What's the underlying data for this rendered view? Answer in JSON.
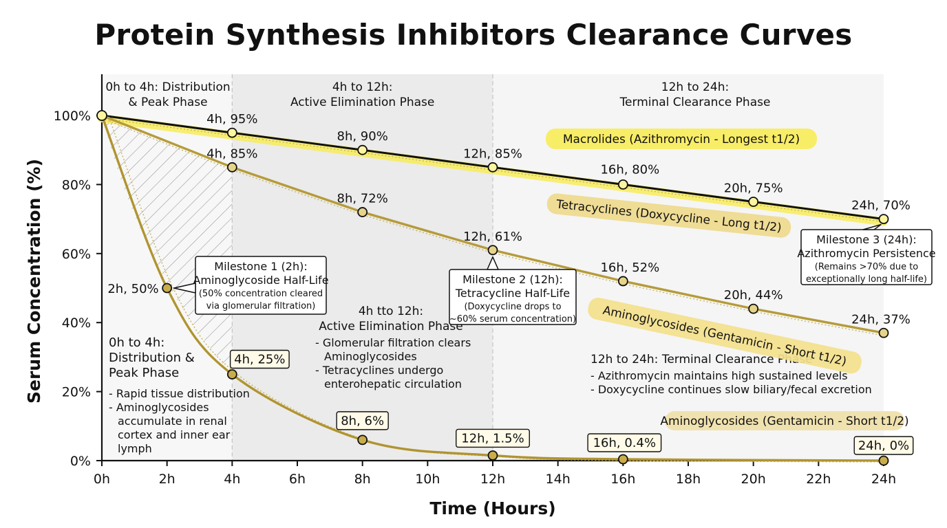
{
  "title": "Protein Synthesis Inhibitors Clearance Curves",
  "colors": {
    "macrolide_line": "#111111",
    "macrolide_highlight": "#f7ec5a",
    "tetracycline_line": "#b59b3a",
    "aminoglycoside_line": "#b09430",
    "tetracycline_tag": "#eed98c",
    "aminoglycoside_tag": "#f3e08c",
    "aminoglycoside_tag2": "#efe0a8",
    "phase1_bg": "#f7f7f7",
    "phase2_bg": "#ebebeb",
    "phase3_bg": "#f5f5f5"
  },
  "chart_data": {
    "type": "line",
    "xlabel": "Time (Hours)",
    "ylabel": "Serum Concentration (%)",
    "xlim": [
      0,
      24
    ],
    "ylim": [
      0,
      100
    ],
    "x_ticks": [
      0,
      2,
      4,
      6,
      8,
      10,
      12,
      14,
      16,
      18,
      20,
      22,
      24
    ],
    "x_tick_labels": [
      "0h",
      "2h",
      "4h",
      "6h",
      "8h",
      "10h",
      "12h",
      "14h",
      "16h",
      "18h",
      "20h",
      "22h",
      "24h"
    ],
    "y_ticks": [
      0,
      20,
      40,
      60,
      80,
      100
    ],
    "y_tick_labels": [
      "0%",
      "20%",
      "40%",
      "60%",
      "80%",
      "100%"
    ],
    "phase_headers": [
      {
        "from": 0,
        "to": 4,
        "lines": [
          "0h to 4h: Distribution",
          "& Peak Phase"
        ]
      },
      {
        "from": 4,
        "to": 12,
        "lines": [
          "4h to 12h:",
          "Active Elimination Phase"
        ]
      },
      {
        "from": 12,
        "to": 24,
        "lines": [
          "12h to 24h:",
          "Terminal Clearance Phase"
        ]
      }
    ],
    "series": [
      {
        "name": "Macrolides (Azithromycin - Longest t1/2)",
        "x": [
          0,
          4,
          8,
          12,
          16,
          20,
          24
        ],
        "y": [
          100,
          95,
          90,
          85,
          80,
          75,
          70
        ],
        "labels": [
          "",
          "4h, 95%",
          "8h, 90%",
          "12h, 85%",
          "16h, 80%",
          "20h, 75%",
          "24h, 70%"
        ]
      },
      {
        "name": "Tetracyclines (Doxycycline - Long t1/2)",
        "x": [
          0,
          4,
          8,
          12,
          16,
          20,
          24
        ],
        "y": [
          100,
          85,
          72,
          61,
          52,
          44,
          37
        ],
        "labels": [
          "",
          "4h, 85%",
          "8h, 72%",
          "12h, 61%",
          "16h, 52%",
          "20h, 44%",
          "24h, 37%"
        ]
      },
      {
        "name": "Aminoglycosides (Gentamicin - Short t1/2)",
        "x": [
          0,
          2,
          4,
          8,
          12,
          16,
          24
        ],
        "y": [
          100,
          50,
          25,
          6,
          1.5,
          0.4,
          0
        ],
        "labels": [
          "",
          "2h, 50%",
          "4h, 25%",
          "8h, 6%",
          "12h, 1.5%",
          "16h, 0.4%",
          "24h, 0%"
        ]
      }
    ],
    "series_tags": [
      "Macrolides (Azithromycin - Longest t1/2)",
      "Tetracyclines (Doxycycline - Long t1/2)",
      "Aminoglycosides (Gentamicin - Short t1/2)",
      "Aminoglycosides (Gentamicin - Short t1/2)"
    ],
    "milestones": [
      {
        "title": "Milestone 1 (2h):",
        "lines": [
          "Aminoglycoside Half-Life",
          "(50% concentration cleared",
          "via glomerular filtration)"
        ]
      },
      {
        "title": "Milestone 2 (12h):",
        "lines": [
          "Tetracycline Half-Life",
          "(Doxycycline drops to",
          "~60% serum concentration)"
        ]
      },
      {
        "title": "Milestone 3 (24h):",
        "lines": [
          "Azithromycin Persistence",
          "(Remains >70% due to",
          "exceptionally long half-life)"
        ]
      }
    ],
    "annotations": [
      {
        "lines": [
          "0h to 4h:",
          "Distribution &",
          "Peak Phase"
        ],
        "bullets": [
          "- Rapid tissue distribution",
          "- Aminoglycosides",
          "  accumulate in renal",
          "  cortex and inner ear",
          "  lymph"
        ]
      },
      {
        "lines": [
          "4h tto 12h:",
          "Active Elimination Phase"
        ],
        "bullets": [
          "- Glomerular filtration clears",
          "  Aminoglycosides",
          "- Tetracyclines undergo",
          "  enterohepatic circulation"
        ]
      },
      {
        "lines": [
          "12h to 24h: Terminal Clearance Phase"
        ],
        "bullets": [
          "- Azithromycin maintains high sustained levels",
          "- Doxycycline continues slow biliary/fecal excretion"
        ]
      }
    ]
  }
}
